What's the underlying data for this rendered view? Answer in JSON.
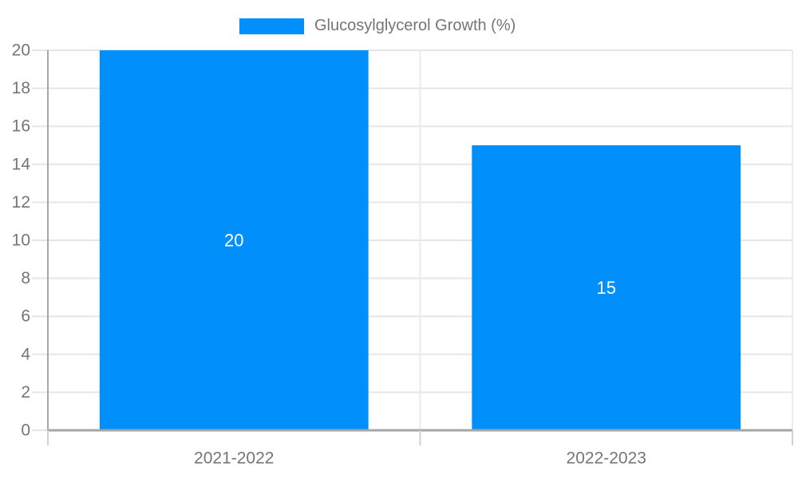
{
  "chart_data": {
    "type": "bar",
    "title": "",
    "legend_label": "Glucosylglycerol Growth (%)",
    "legend_position": "top",
    "categories": [
      "2021-2022",
      "2022-2023"
    ],
    "series": [
      {
        "name": "Glucosylglycerol Growth (%)",
        "values": [
          20,
          15
        ]
      }
    ],
    "value_labels": [
      "20",
      "15"
    ],
    "xlabel": "",
    "ylabel": "",
    "ylim": [
      0,
      20
    ],
    "ytick_step": 2,
    "ytick_labels": [
      "0",
      "2",
      "4",
      "6",
      "8",
      "10",
      "12",
      "14",
      "16",
      "18",
      "20"
    ],
    "grid": true,
    "colors": {
      "bar": "#008FFB",
      "grid_line": "#e6e6e6",
      "boundary_line": "#ebebeb",
      "axis_line": "#a6a6a6",
      "tick_line": "#d2d2d2",
      "axis_label": "#757575",
      "value_label": "#ffffff",
      "background": "#ffffff"
    }
  }
}
